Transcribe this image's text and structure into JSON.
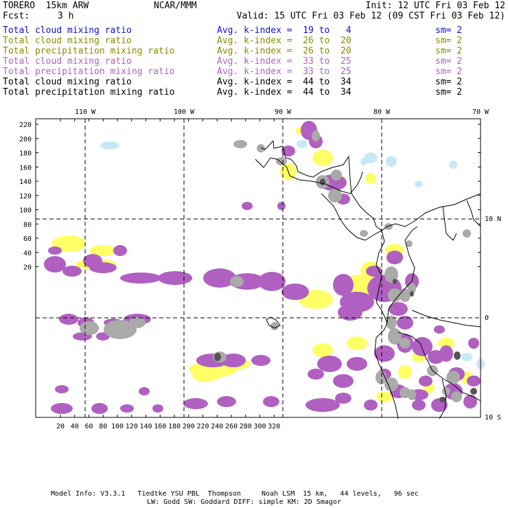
{
  "header": {
    "model": "TORERO  15km ARW",
    "org": "NCAR/MMM",
    "init": "Init: 12 UTC Fri 03 Feb 12",
    "fcst_label": "Fcst:",
    "fcst_value": "3 h",
    "valid": "Valid: 15 UTC Fri 03 Feb 12 (09 CST Fri 03 Feb 12)"
  },
  "legend": [
    {
      "field": "Total cloud mixing ratio",
      "kindex": "Avg. k-index =  19 to   4",
      "sm": "sm= 2",
      "color": "#1010cc"
    },
    {
      "field": "Total cloud mixing ratio",
      "kindex": "Avg. k-index =  26 to  20",
      "sm": "sm= 2",
      "color": "#8a8a00"
    },
    {
      "field": "Total precipitation mixing ratio",
      "kindex": "Avg. k-index =  26 to  20",
      "sm": "sm= 2",
      "color": "#8a8a00"
    },
    {
      "field": "Total cloud mixing ratio",
      "kindex": "Avg. k-index =  33 to  25",
      "sm": "sm= 2",
      "color": "#b060c0"
    },
    {
      "field": "Total precipitation mixing ratio",
      "kindex": "Avg. k-index =  33 to  25",
      "sm": "sm= 2",
      "color": "#b060c0"
    },
    {
      "field": "Total cloud mixing ratio",
      "kindex": "Avg. k-index =  44 to  34",
      "sm": "sm= 2",
      "color": "#000000"
    },
    {
      "field": "Total precipitation mixing ratio",
      "kindex": "Avg. k-index =  44 to  34",
      "sm": "sm= 2",
      "color": "#000000"
    }
  ],
  "axes": {
    "top_lon": [
      "110 W",
      "100 W",
      "90 W",
      "80 W",
      "70 W"
    ],
    "right_lat": [
      "10 N",
      "0",
      "10 S"
    ],
    "left_y": [
      "220",
      "200",
      "180",
      "160",
      "140",
      "120",
      "100",
      "80",
      "60",
      "40",
      "20"
    ],
    "bottom_x": [
      "20",
      "40",
      "60",
      "80",
      "100",
      "120",
      "140",
      "160",
      "180",
      "200",
      "220",
      "240",
      "260",
      "280",
      "300",
      "320"
    ]
  },
  "footer": {
    "line1": "Model Info: V3.3.1   Tiedtke YSU PBL  Thompson     Noah LSM  15 km,   44 levels,   96 sec",
    "line2": "LW: Godd SW: Goddard DIFF: simple KM: 2D Smagor"
  },
  "colors": {
    "light_blue": "#c8e8f8",
    "yellow": "#ffff66",
    "purple": "#b060c0",
    "gray": "#aaaaaa",
    "dark_gray": "#555555"
  }
}
